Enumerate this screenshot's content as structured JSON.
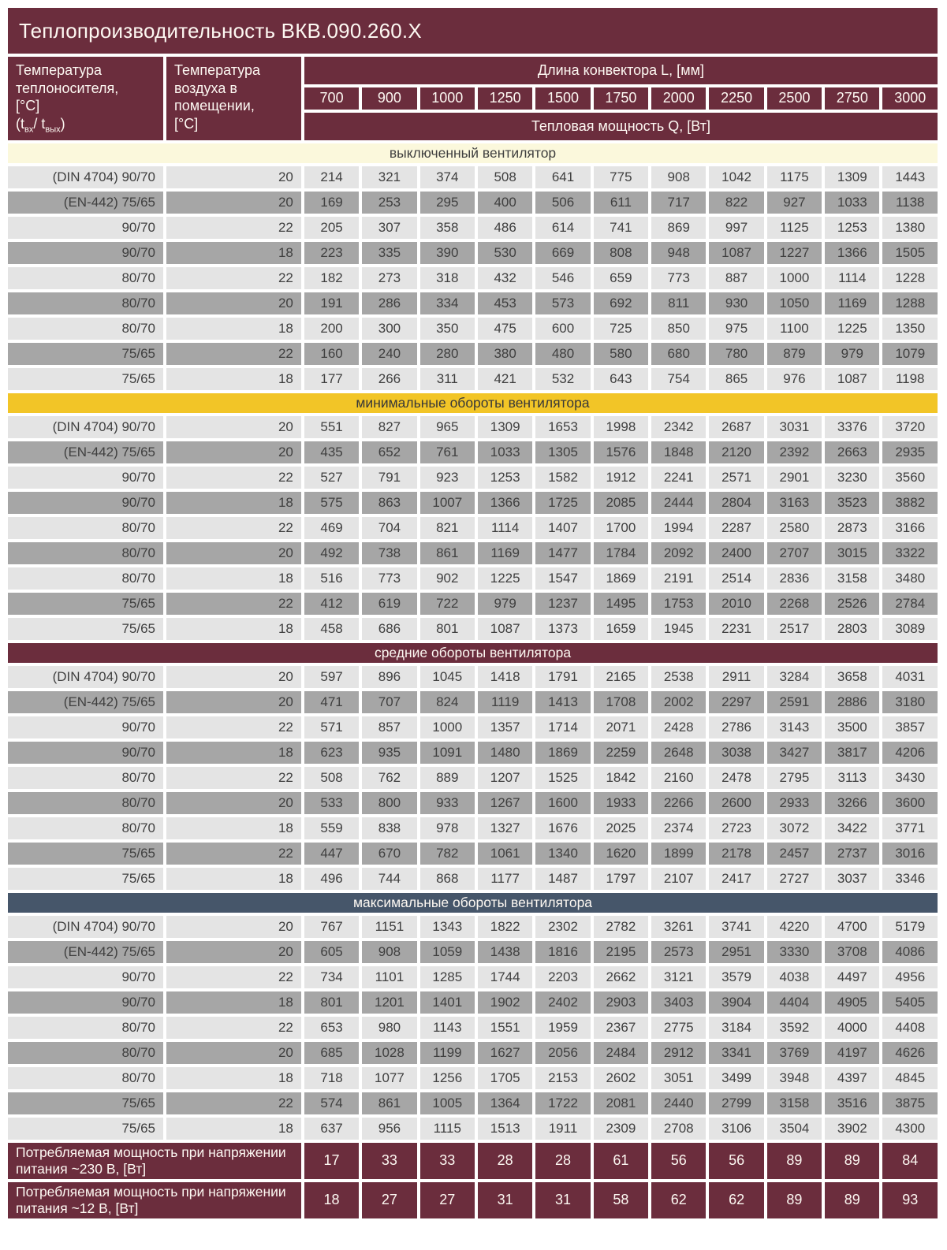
{
  "title": "Теплопроизводительность ВКВ.090.260.Х",
  "header": {
    "coolant_temp": {
      "line1": "Температура",
      "line2": "теплоносителя,",
      "line3": "[°C]",
      "t_open": "(t",
      "t_sub_in": "вх",
      "t_mid": "/ t",
      "t_sub_out": "вых",
      "t_close": ")"
    },
    "air_temp": {
      "line1": "Температура",
      "line2": "воздуха в",
      "line3": "помещении,",
      "line4": "[°C]"
    },
    "length_label": "Длина конвектора L, [мм]",
    "lengths": [
      "700",
      "900",
      "1000",
      "1250",
      "1500",
      "1750",
      "2000",
      "2250",
      "2500",
      "2750",
      "3000"
    ],
    "power_label": "Тепловая мощность Q, [Вт]"
  },
  "sections": [
    {
      "label": "выключенный вентилятор",
      "theme": "cream",
      "rows": [
        {
          "coolant": "(DIN 4704) 90/70",
          "air": "20",
          "values": [
            214,
            321,
            374,
            508,
            641,
            775,
            908,
            1042,
            1175,
            1309,
            1443
          ]
        },
        {
          "coolant": "(EN-442) 75/65",
          "air": "20",
          "values": [
            169,
            253,
            295,
            400,
            506,
            611,
            717,
            822,
            927,
            1033,
            1138
          ]
        },
        {
          "coolant": "90/70",
          "air": "22",
          "values": [
            205,
            307,
            358,
            486,
            614,
            741,
            869,
            997,
            1125,
            1253,
            1380
          ]
        },
        {
          "coolant": "90/70",
          "air": "18",
          "values": [
            223,
            335,
            390,
            530,
            669,
            808,
            948,
            1087,
            1227,
            1366,
            1505
          ]
        },
        {
          "coolant": "80/70",
          "air": "22",
          "values": [
            182,
            273,
            318,
            432,
            546,
            659,
            773,
            887,
            1000,
            1114,
            1228
          ]
        },
        {
          "coolant": "80/70",
          "air": "20",
          "values": [
            191,
            286,
            334,
            453,
            573,
            692,
            811,
            930,
            1050,
            1169,
            1288
          ]
        },
        {
          "coolant": "80/70",
          "air": "18",
          "values": [
            200,
            300,
            350,
            475,
            600,
            725,
            850,
            975,
            1100,
            1225,
            1350
          ]
        },
        {
          "coolant": "75/65",
          "air": "22",
          "values": [
            160,
            240,
            280,
            380,
            480,
            580,
            680,
            780,
            879,
            979,
            1079
          ]
        },
        {
          "coolant": "75/65",
          "air": "18",
          "values": [
            177,
            266,
            311,
            421,
            532,
            643,
            754,
            865,
            976,
            1087,
            1198
          ]
        }
      ]
    },
    {
      "label": "минимальные обороты вентилятора",
      "theme": "yellow",
      "rows": [
        {
          "coolant": "(DIN 4704) 90/70",
          "air": "20",
          "values": [
            551,
            827,
            965,
            1309,
            1653,
            1998,
            2342,
            2687,
            3031,
            3376,
            3720
          ]
        },
        {
          "coolant": "(EN-442) 75/65",
          "air": "20",
          "values": [
            435,
            652,
            761,
            1033,
            1305,
            1576,
            1848,
            2120,
            2392,
            2663,
            2935
          ]
        },
        {
          "coolant": "90/70",
          "air": "22",
          "values": [
            527,
            791,
            923,
            1253,
            1582,
            1912,
            2241,
            2571,
            2901,
            3230,
            3560
          ]
        },
        {
          "coolant": "90/70",
          "air": "18",
          "values": [
            575,
            863,
            1007,
            1366,
            1725,
            2085,
            2444,
            2804,
            3163,
            3523,
            3882
          ]
        },
        {
          "coolant": "80/70",
          "air": "22",
          "values": [
            469,
            704,
            821,
            1114,
            1407,
            1700,
            1994,
            2287,
            2580,
            2873,
            3166
          ]
        },
        {
          "coolant": "80/70",
          "air": "20",
          "values": [
            492,
            738,
            861,
            1169,
            1477,
            1784,
            2092,
            2400,
            2707,
            3015,
            3322
          ]
        },
        {
          "coolant": "80/70",
          "air": "18",
          "values": [
            516,
            773,
            902,
            1225,
            1547,
            1869,
            2191,
            2514,
            2836,
            3158,
            3480
          ]
        },
        {
          "coolant": "75/65",
          "air": "22",
          "values": [
            412,
            619,
            722,
            979,
            1237,
            1495,
            1753,
            2010,
            2268,
            2526,
            2784
          ]
        },
        {
          "coolant": "75/65",
          "air": "18",
          "values": [
            458,
            686,
            801,
            1087,
            1373,
            1659,
            1945,
            2231,
            2517,
            2803,
            3089
          ]
        }
      ]
    },
    {
      "label": "средние обороты вентилятора",
      "theme": "maroon",
      "rows": [
        {
          "coolant": "(DIN 4704) 90/70",
          "air": "20",
          "values": [
            597,
            896,
            1045,
            1418,
            1791,
            2165,
            2538,
            2911,
            3284,
            3658,
            4031
          ]
        },
        {
          "coolant": "(EN-442) 75/65",
          "air": "20",
          "values": [
            471,
            707,
            824,
            1119,
            1413,
            1708,
            2002,
            2297,
            2591,
            2886,
            3180
          ]
        },
        {
          "coolant": "90/70",
          "air": "22",
          "values": [
            571,
            857,
            1000,
            1357,
            1714,
            2071,
            2428,
            2786,
            3143,
            3500,
            3857
          ]
        },
        {
          "coolant": "90/70",
          "air": "18",
          "values": [
            623,
            935,
            1091,
            1480,
            1869,
            2259,
            2648,
            3038,
            3427,
            3817,
            4206
          ]
        },
        {
          "coolant": "80/70",
          "air": "22",
          "values": [
            508,
            762,
            889,
            1207,
            1525,
            1842,
            2160,
            2478,
            2795,
            3113,
            3430
          ]
        },
        {
          "coolant": "80/70",
          "air": "20",
          "values": [
            533,
            800,
            933,
            1267,
            1600,
            1933,
            2266,
            2600,
            2933,
            3266,
            3600
          ]
        },
        {
          "coolant": "80/70",
          "air": "18",
          "values": [
            559,
            838,
            978,
            1327,
            1676,
            2025,
            2374,
            2723,
            3072,
            3422,
            3771
          ]
        },
        {
          "coolant": "75/65",
          "air": "22",
          "values": [
            447,
            670,
            782,
            1061,
            1340,
            1620,
            1899,
            2178,
            2457,
            2737,
            3016
          ]
        },
        {
          "coolant": "75/65",
          "air": "18",
          "values": [
            496,
            744,
            868,
            1177,
            1487,
            1797,
            2107,
            2417,
            2727,
            3037,
            3346
          ]
        }
      ]
    },
    {
      "label": "максимальные обороты вентилятора",
      "theme": "slate",
      "rows": [
        {
          "coolant": "(DIN 4704) 90/70",
          "air": "20",
          "values": [
            767,
            1151,
            1343,
            1822,
            2302,
            2782,
            3261,
            3741,
            4220,
            4700,
            5179
          ]
        },
        {
          "coolant": "(EN-442) 75/65",
          "air": "20",
          "values": [
            605,
            908,
            1059,
            1438,
            1816,
            2195,
            2573,
            2951,
            3330,
            3708,
            4086
          ]
        },
        {
          "coolant": "90/70",
          "air": "22",
          "values": [
            734,
            1101,
            1285,
            1744,
            2203,
            2662,
            3121,
            3579,
            4038,
            4497,
            4956
          ]
        },
        {
          "coolant": "90/70",
          "air": "18",
          "values": [
            801,
            1201,
            1401,
            1902,
            2402,
            2903,
            3403,
            3904,
            4404,
            4905,
            5405
          ]
        },
        {
          "coolant": "80/70",
          "air": "22",
          "values": [
            653,
            980,
            1143,
            1551,
            1959,
            2367,
            2775,
            3184,
            3592,
            4000,
            4408
          ]
        },
        {
          "coolant": "80/70",
          "air": "20",
          "values": [
            685,
            1028,
            1199,
            1627,
            2056,
            2484,
            2912,
            3341,
            3769,
            4197,
            4626
          ]
        },
        {
          "coolant": "80/70",
          "air": "18",
          "values": [
            718,
            1077,
            1256,
            1705,
            2153,
            2602,
            3051,
            3499,
            3948,
            4397,
            4845
          ]
        },
        {
          "coolant": "75/65",
          "air": "22",
          "values": [
            574,
            861,
            1005,
            1364,
            1722,
            2081,
            2440,
            2799,
            3158,
            3516,
            3875
          ]
        },
        {
          "coolant": "75/65",
          "air": "18",
          "values": [
            637,
            956,
            1115,
            1513,
            1911,
            2309,
            2708,
            3106,
            3504,
            3902,
            4300
          ]
        }
      ]
    }
  ],
  "power_rows": [
    {
      "label": "Потребляемая мощность при напряжении питания ~230 В, [Вт]",
      "values": [
        17,
        33,
        33,
        28,
        28,
        61,
        56,
        56,
        89,
        89,
        84
      ]
    },
    {
      "label": "Потребляемая мощность при напряжении питания ~12 В, [Вт]",
      "values": [
        18,
        27,
        27,
        31,
        31,
        58,
        62,
        62,
        89,
        89,
        93
      ]
    }
  ],
  "colors": {
    "maroon": "#6b2d3d",
    "slate": "#46566a",
    "yellow": "#f2c527",
    "cream": "#fbf8dc",
    "row_light": "#e4e4e4",
    "row_dark": "#a6a6a6"
  }
}
